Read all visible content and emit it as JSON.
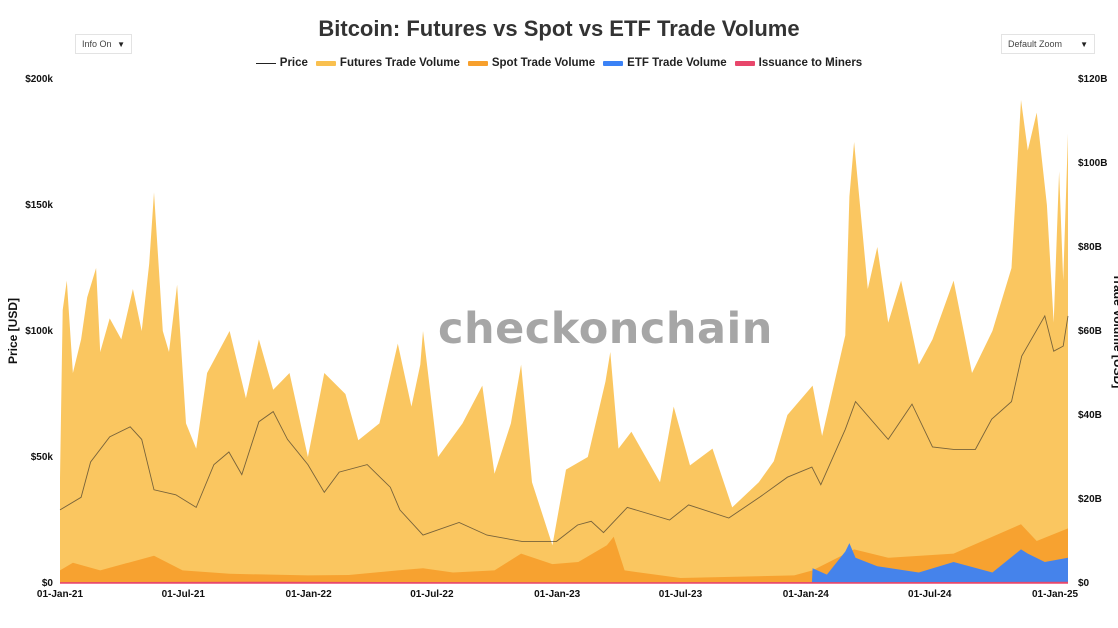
{
  "title": "Bitcoin: Futures vs Spot vs ETF Trade Volume",
  "controls": {
    "info_label": "Info On",
    "zoom_label": "Default Zoom",
    "arrow": "▼"
  },
  "watermark": "checkonchain",
  "chart_data": {
    "type": "area",
    "title": "Bitcoin: Futures vs Spot vs ETF Trade Volume",
    "legend_position": "top",
    "grid": false,
    "y_left": {
      "label": "Price [USD]",
      "range": [
        0,
        200000
      ],
      "ticks": [
        0,
        50000,
        100000,
        150000,
        200000
      ],
      "tick_labels": [
        "$0",
        "$50k",
        "$100k",
        "$150k",
        "$200k"
      ]
    },
    "y_right": {
      "label": "Trade Volume [USD]",
      "range": [
        0,
        120000000000
      ],
      "ticks": [
        0,
        20000000000,
        40000000000,
        60000000000,
        80000000000,
        100000000000,
        120000000000
      ],
      "tick_labels": [
        "$0",
        "$20B",
        "$40B",
        "$60B",
        "$80B",
        "$100B",
        "$120B"
      ]
    },
    "x": {
      "range": [
        "2021-01-01",
        "2025-01-20"
      ],
      "ticks": [
        "2021-01-01",
        "2021-07-01",
        "2022-01-01",
        "2022-07-01",
        "2023-01-01",
        "2023-07-01",
        "2024-01-01",
        "2024-07-01",
        "2025-01-01"
      ],
      "tick_labels": [
        "01-Jan-21",
        "01-Jul-21",
        "01-Jan-22",
        "01-Jul-22",
        "01-Jan-23",
        "01-Jul-23",
        "01-Jan-24",
        "01-Jul-24",
        "01-Jan-25"
      ]
    },
    "series": [
      {
        "name": "Price",
        "axis": "left",
        "kind": "line",
        "color": "#222222",
        "points": [
          [
            "2021-01-01",
            29000
          ],
          [
            "2021-02-01",
            34000
          ],
          [
            "2021-02-15",
            48000
          ],
          [
            "2021-03-15",
            58000
          ],
          [
            "2021-04-14",
            62000
          ],
          [
            "2021-05-01",
            57000
          ],
          [
            "2021-05-19",
            37000
          ],
          [
            "2021-06-20",
            35000
          ],
          [
            "2021-07-20",
            30000
          ],
          [
            "2021-08-15",
            47000
          ],
          [
            "2021-09-06",
            52000
          ],
          [
            "2021-09-25",
            43000
          ],
          [
            "2021-10-20",
            64000
          ],
          [
            "2021-11-10",
            68000
          ],
          [
            "2021-12-01",
            57000
          ],
          [
            "2021-12-31",
            47000
          ],
          [
            "2022-01-24",
            36000
          ],
          [
            "2022-02-15",
            44000
          ],
          [
            "2022-03-28",
            47000
          ],
          [
            "2022-05-01",
            38000
          ],
          [
            "2022-05-15",
            29000
          ],
          [
            "2022-06-18",
            19000
          ],
          [
            "2022-08-10",
            24000
          ],
          [
            "2022-09-20",
            19000
          ],
          [
            "2022-11-10",
            16500
          ],
          [
            "2022-12-31",
            16500
          ],
          [
            "2023-01-31",
            23000
          ],
          [
            "2023-02-20",
            24500
          ],
          [
            "2023-03-10",
            20000
          ],
          [
            "2023-04-14",
            30000
          ],
          [
            "2023-06-15",
            25000
          ],
          [
            "2023-07-13",
            31000
          ],
          [
            "2023-09-10",
            25800
          ],
          [
            "2023-10-25",
            34000
          ],
          [
            "2023-12-05",
            42000
          ],
          [
            "2024-01-10",
            46000
          ],
          [
            "2024-01-23",
            39000
          ],
          [
            "2024-02-28",
            61000
          ],
          [
            "2024-03-14",
            72000
          ],
          [
            "2024-05-01",
            57000
          ],
          [
            "2024-06-05",
            71000
          ],
          [
            "2024-07-05",
            54000
          ],
          [
            "2024-08-05",
            53000
          ],
          [
            "2024-09-06",
            53000
          ],
          [
            "2024-09-30",
            65000
          ],
          [
            "2024-10-29",
            72000
          ],
          [
            "2024-11-13",
            90000
          ],
          [
            "2024-12-17",
            106000
          ],
          [
            "2024-12-30",
            92000
          ],
          [
            "2025-01-13",
            94000
          ],
          [
            "2025-01-20",
            106000
          ]
        ]
      },
      {
        "name": "Futures Trade Volume",
        "axis": "right",
        "kind": "area",
        "color": "#f9c04f",
        "points": [
          [
            "2021-01-01",
            25000000000
          ],
          [
            "2021-01-05",
            65000000000
          ],
          [
            "2021-01-11",
            72000000000
          ],
          [
            "2021-01-20",
            50000000000
          ],
          [
            "2021-02-01",
            58000000000
          ],
          [
            "2021-02-10",
            68000000000
          ],
          [
            "2021-02-23",
            75000000000
          ],
          [
            "2021-03-01",
            55000000000
          ],
          [
            "2021-03-15",
            63000000000
          ],
          [
            "2021-04-01",
            58000000000
          ],
          [
            "2021-04-18",
            70000000000
          ],
          [
            "2021-05-01",
            60000000000
          ],
          [
            "2021-05-12",
            76000000000
          ],
          [
            "2021-05-19",
            93000000000
          ],
          [
            "2021-06-01",
            60000000000
          ],
          [
            "2021-06-10",
            55000000000
          ],
          [
            "2021-06-22",
            71000000000
          ],
          [
            "2021-07-05",
            38000000000
          ],
          [
            "2021-07-20",
            32000000000
          ],
          [
            "2021-08-05",
            50000000000
          ],
          [
            "2021-09-07",
            60000000000
          ],
          [
            "2021-10-01",
            44000000000
          ],
          [
            "2021-10-20",
            58000000000
          ],
          [
            "2021-11-10",
            46000000000
          ],
          [
            "2021-12-04",
            50000000000
          ],
          [
            "2021-12-31",
            30000000000
          ],
          [
            "2022-01-24",
            50000000000
          ],
          [
            "2022-02-24",
            45000000000
          ],
          [
            "2022-03-15",
            34000000000
          ],
          [
            "2022-04-15",
            38000000000
          ],
          [
            "2022-05-12",
            57000000000
          ],
          [
            "2022-06-01",
            42000000000
          ],
          [
            "2022-06-14",
            52000000000
          ],
          [
            "2022-06-18",
            60000000000
          ],
          [
            "2022-07-10",
            30000000000
          ],
          [
            "2022-08-15",
            38000000000
          ],
          [
            "2022-09-13",
            47000000000
          ],
          [
            "2022-10-01",
            26000000000
          ],
          [
            "2022-10-25",
            38000000000
          ],
          [
            "2022-11-09",
            52000000000
          ],
          [
            "2022-11-25",
            24000000000
          ],
          [
            "2022-12-25",
            9000000000
          ],
          [
            "2023-01-14",
            27000000000
          ],
          [
            "2023-02-15",
            30000000000
          ],
          [
            "2023-03-13",
            48000000000
          ],
          [
            "2023-03-20",
            55000000000
          ],
          [
            "2023-04-01",
            32000000000
          ],
          [
            "2023-04-20",
            36000000000
          ],
          [
            "2023-06-01",
            24000000000
          ],
          [
            "2023-06-21",
            42000000000
          ],
          [
            "2023-07-15",
            28000000000
          ],
          [
            "2023-08-17",
            32000000000
          ],
          [
            "2023-09-15",
            18000000000
          ],
          [
            "2023-10-24",
            24000000000
          ],
          [
            "2023-11-15",
            29000000000
          ],
          [
            "2023-12-05",
            40000000000
          ],
          [
            "2024-01-11",
            47000000000
          ],
          [
            "2024-01-25",
            35000000000
          ],
          [
            "2024-02-28",
            59000000000
          ],
          [
            "2024-03-05",
            92000000000
          ],
          [
            "2024-03-12",
            105000000000
          ],
          [
            "2024-04-01",
            70000000000
          ],
          [
            "2024-04-15",
            80000000000
          ],
          [
            "2024-05-01",
            62000000000
          ],
          [
            "2024-05-20",
            72000000000
          ],
          [
            "2024-06-15",
            52000000000
          ],
          [
            "2024-07-05",
            58000000000
          ],
          [
            "2024-08-05",
            72000000000
          ],
          [
            "2024-09-01",
            50000000000
          ],
          [
            "2024-10-01",
            60000000000
          ],
          [
            "2024-10-29",
            75000000000
          ],
          [
            "2024-11-12",
            115000000000
          ],
          [
            "2024-11-22",
            103000000000
          ],
          [
            "2024-12-05",
            112000000000
          ],
          [
            "2024-12-20",
            90000000000
          ],
          [
            "2024-12-30",
            62000000000
          ],
          [
            "2025-01-07",
            98000000000
          ],
          [
            "2025-01-13",
            72000000000
          ],
          [
            "2025-01-20",
            107000000000
          ]
        ]
      },
      {
        "name": "Spot Trade Volume",
        "axis": "right",
        "kind": "area",
        "color": "#f7a02d",
        "points": [
          [
            "2021-01-01",
            3000000000
          ],
          [
            "2021-01-20",
            4800000000
          ],
          [
            "2021-03-01",
            3000000000
          ],
          [
            "2021-05-19",
            6500000000
          ],
          [
            "2021-06-30",
            3000000000
          ],
          [
            "2021-09-07",
            2200000000
          ],
          [
            "2021-12-31",
            1800000000
          ],
          [
            "2022-03-01",
            1900000000
          ],
          [
            "2022-05-12",
            3000000000
          ],
          [
            "2022-06-18",
            3500000000
          ],
          [
            "2022-08-01",
            2500000000
          ],
          [
            "2022-10-01",
            3000000000
          ],
          [
            "2022-11-09",
            7000000000
          ],
          [
            "2022-12-25",
            4500000000
          ],
          [
            "2023-02-01",
            5000000000
          ],
          [
            "2023-03-15",
            9000000000
          ],
          [
            "2023-03-25",
            11000000000
          ],
          [
            "2023-04-10",
            3000000000
          ],
          [
            "2023-07-01",
            1200000000
          ],
          [
            "2023-12-15",
            1800000000
          ],
          [
            "2024-01-11",
            3000000000
          ],
          [
            "2024-03-12",
            8000000000
          ],
          [
            "2024-05-01",
            6000000000
          ],
          [
            "2024-08-05",
            7000000000
          ],
          [
            "2024-11-12",
            14000000000
          ],
          [
            "2024-12-05",
            10000000000
          ],
          [
            "2025-01-20",
            13000000000
          ]
        ]
      },
      {
        "name": "ETF Trade Volume",
        "axis": "right",
        "kind": "area",
        "color": "#3b82f6",
        "points": [
          [
            "2024-01-10",
            0
          ],
          [
            "2024-01-11",
            3500000000
          ],
          [
            "2024-02-01",
            2000000000
          ],
          [
            "2024-02-28",
            7500000000
          ],
          [
            "2024-03-05",
            9500000000
          ],
          [
            "2024-03-14",
            6000000000
          ],
          [
            "2024-04-15",
            4000000000
          ],
          [
            "2024-06-15",
            2500000000
          ],
          [
            "2024-08-05",
            5000000000
          ],
          [
            "2024-10-01",
            2500000000
          ],
          [
            "2024-11-12",
            8000000000
          ],
          [
            "2024-11-22",
            7000000000
          ],
          [
            "2024-12-17",
            5000000000
          ],
          [
            "2025-01-20",
            6000000000
          ]
        ]
      },
      {
        "name": "Issuance to Miners",
        "axis": "right",
        "kind": "area",
        "color": "#e8476b",
        "points": [
          [
            "2021-01-01",
            200000000
          ],
          [
            "2021-11-01",
            300000000
          ],
          [
            "2022-12-31",
            120000000
          ],
          [
            "2023-12-31",
            220000000
          ],
          [
            "2024-04-20",
            180000000
          ],
          [
            "2025-01-20",
            280000000
          ]
        ]
      }
    ]
  }
}
